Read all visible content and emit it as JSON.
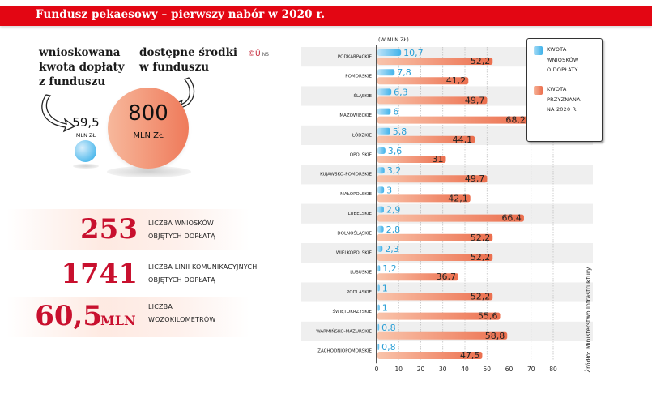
{
  "title": "Fundusz pekaesowy – pierwszy nabór w 2020 r.",
  "bubbles": {
    "requested_label": "wnioskowana\nkwota dopłaty\nz funduszu",
    "available_label": "dostępne środki\nw funduszu",
    "requested_value": "59,5",
    "requested_unit": "MLN ZŁ",
    "available_value": "800",
    "available_unit": "MLN ZŁ",
    "colors": {
      "requested": "#4fb9ec",
      "available": "#ef7a5a"
    }
  },
  "copyright": {
    "mark": "©Ü",
    "initials": "NS"
  },
  "stats": [
    {
      "value": "253",
      "suffix": "",
      "label": "LICZBA WNIOSKÓW\nOBJĘTYCH DOPŁATĄ"
    },
    {
      "value": "1741",
      "suffix": "",
      "label": "LICZBA LINII KOMUNIKACYJNYCH\nOBJĘTYCH DOPŁATĄ"
    },
    {
      "value": "60,5",
      "suffix": "MLN",
      "label": "LICZBA\nWOZOKILOMETRÓW"
    }
  ],
  "legend": {
    "items": [
      {
        "label": "KWOTA\nWNIOSKÓW\nO DOPŁATY",
        "color": "#4fb9ec"
      },
      {
        "label": "KWOTA\nPRZYZNANA\nNA 2020 R.",
        "color": "#ef7a5a"
      }
    ]
  },
  "source": "Źródło: Ministerstwo Infrastruktury",
  "chart_data": {
    "type": "bar",
    "orientation": "horizontal",
    "title": "Fundusz pekaesowy – pierwszy nabór w 2020 r.",
    "unit_label": "(W MLN ZŁ)",
    "xlabel": "",
    "ylabel": "",
    "xlim": [
      0,
      80
    ],
    "xticks": [
      0,
      10,
      20,
      30,
      40,
      50,
      60,
      70,
      80
    ],
    "grid": true,
    "legend_position": "top-right",
    "categories": [
      "PODKARPACKIE",
      "POMORSKIE",
      "ŚLĄSKIE",
      "MAZOWIECKIE",
      "ŁÓDZKIE",
      "OPOLSKIE",
      "KUJAWSKO-POMORSKIE",
      "MAŁOPOLSKIE",
      "LUBELSKIE",
      "DOLNOŚLĄSKIE",
      "WIELKOPOLSKIE",
      "LUBUSKIE",
      "PODLASKIE",
      "ŚWIĘTOKRZYSKIE",
      "WARMIŃSKO-MAZURSKIE",
      "ZACHODNIOPOMORSKIE"
    ],
    "series": [
      {
        "name": "KWOTA WNIOSKÓW O DOPŁATY",
        "color": "#4fb9ec",
        "label_color": "#2a9fd6",
        "values": [
          10.7,
          7.8,
          6.3,
          6,
          5.8,
          3.6,
          3.2,
          3,
          2.9,
          2.8,
          2.3,
          1.2,
          1,
          1,
          0.8,
          0.8
        ],
        "labels": [
          "10,7",
          "7,8",
          "6,3",
          "6",
          "5,8",
          "3,6",
          "3,2",
          "3",
          "2,9",
          "2,8",
          "2,3",
          "1,2",
          "1",
          "1",
          "0,8",
          "0,8"
        ]
      },
      {
        "name": "KWOTA PRZYZNANA NA 2020 R.",
        "color": "#ef7a5a",
        "label_color": "#222222",
        "values": [
          52.2,
          41.2,
          49.7,
          68.2,
          44.1,
          31,
          49.7,
          42.1,
          66.4,
          52.2,
          52.2,
          36.7,
          52.2,
          55.6,
          58.8,
          47.5
        ],
        "labels": [
          "52,2",
          "41,2",
          "49,7",
          "68,2",
          "44,1",
          "31",
          "49,7",
          "42,1",
          "66,4",
          "52,2",
          "52,2",
          "36,7",
          "52,2",
          "55,6",
          "58,8",
          "47,5"
        ]
      }
    ]
  }
}
